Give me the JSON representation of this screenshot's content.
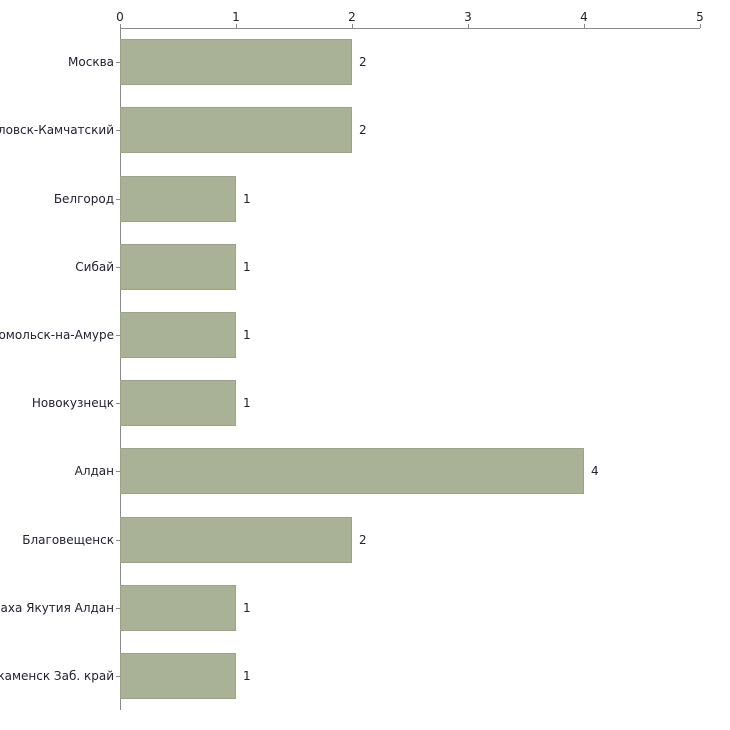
{
  "chart": {
    "bar_color": "#a9b296",
    "bar_border_color": "#9aa487",
    "axis_color": "#8a8a8a",
    "text_color": "#222233"
  },
  "chart_data": {
    "type": "bar",
    "orientation": "horizontal",
    "title": "",
    "xlabel": "",
    "ylabel": "",
    "categories": [
      "Москва",
      "павловск-Камчатский",
      "Белгород",
      "Сибай",
      "мсомольск-на-Амуре",
      "Новокузнецк",
      "Алдан",
      "Благовещенск",
      "Саха Якутия Алдан",
      "нокаменск Заб. край"
    ],
    "values": [
      2,
      2,
      1,
      1,
      1,
      1,
      4,
      2,
      1,
      1
    ],
    "xlim": [
      0,
      5
    ],
    "x_ticks": [
      0,
      1,
      2,
      3,
      4,
      5
    ],
    "x_tick_labels": [
      "0",
      "1",
      "2",
      "3",
      "4",
      "5"
    ],
    "grid": false,
    "legend": false,
    "axis_position": "top"
  }
}
